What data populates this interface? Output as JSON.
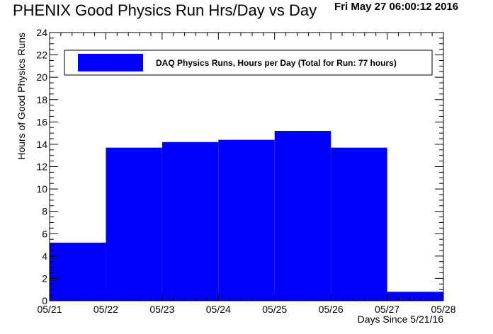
{
  "header": {
    "title": "PHENIX Good Physics Run Hrs/Day vs Day",
    "timestamp": "Fri May 27 06:00:12 2016"
  },
  "chart_data": {
    "type": "bar",
    "categories": [
      "05/21",
      "05/22",
      "05/23",
      "05/24",
      "05/25",
      "05/26",
      "05/27"
    ],
    "x_tick_labels": [
      "05/21",
      "05/22",
      "05/23",
      "05/24",
      "05/25",
      "05/26",
      "05/27",
      "05/28"
    ],
    "series": [
      {
        "name": "DAQ Physics Runs, Hours per Day (Total for Run: 77 hours)",
        "values": [
          5.2,
          13.7,
          14.2,
          14.4,
          15.2,
          13.7,
          0.8
        ],
        "color": "#0000ff"
      }
    ],
    "y_ticks": [
      0,
      2,
      4,
      6,
      8,
      10,
      12,
      14,
      16,
      18,
      20,
      22,
      24
    ],
    "ylim": [
      0,
      24
    ],
    "xlim": [
      0,
      7
    ],
    "xlabel": "Days Since 5/21/16",
    "ylabel": "Hours of Good Physics Runs",
    "legend_position": "top"
  }
}
